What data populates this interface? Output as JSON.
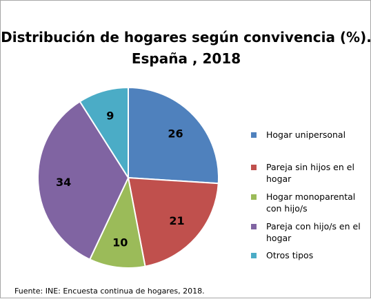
{
  "chart_data": {
    "type": "pie",
    "title_line1": "Distribución de hogares según convivencia (%).",
    "title_line2": "España , 2018",
    "categories": [
      "Hogar unipersonal",
      "Pareja sin hijos en el hogar",
      "Hogar monoparental con hijo/s",
      "Pareja con hijo/s  en el hogar",
      "Otros tipos"
    ],
    "values": [
      26,
      21,
      10,
      34,
      9
    ],
    "value_labels": [
      "26",
      "21",
      "10",
      "34",
      "9"
    ],
    "colors": [
      "#4f81bd",
      "#c0504d",
      "#9bbb59",
      "#8064a2",
      "#4bacc6"
    ],
    "legend_position": "right"
  },
  "source": "Fuente:  INE: Encuesta continua de hogares, 2018."
}
